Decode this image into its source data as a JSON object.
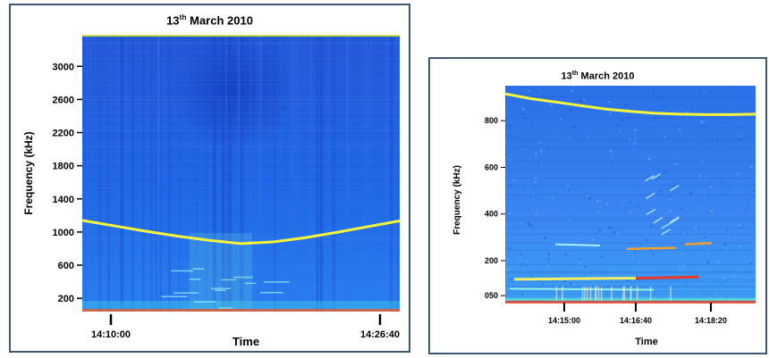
{
  "chart_data": [
    {
      "type": "heatmap",
      "title_main": "13",
      "title_sup": "th",
      "title_rest": " March 2010",
      "xlabel": "Time",
      "ylabel": "Frequency (kHz)",
      "ylim": [
        40,
        3380
      ],
      "yticks": [
        200,
        600,
        1000,
        1400,
        1800,
        2200,
        2600,
        3000
      ],
      "ytick_labels": [
        "200",
        "600",
        "1000",
        "1400",
        "1800",
        "2200",
        "2600",
        "3000"
      ],
      "xticks": [
        "14:10:00",
        "14:26:40"
      ],
      "background_color": "#1f5fe0",
      "series": [
        {
          "color": "#f5f53a",
          "x": [
            0,
            0.1,
            0.2,
            0.3,
            0.4,
            0.5,
            0.6,
            0.7,
            0.8,
            0.9,
            1.0
          ],
          "values": [
            1140,
            1075,
            1010,
            950,
            900,
            860,
            880,
            930,
            995,
            1065,
            1135
          ]
        }
      ]
    },
    {
      "type": "heatmap",
      "title_main": "13",
      "title_sup": "th",
      "title_rest": " March 2010",
      "xlabel": "Time",
      "ylabel": "Frequency (kHz)",
      "ylim": [
        20,
        950
      ],
      "yticks": [
        50,
        200,
        400,
        600,
        800
      ],
      "ytick_labels": [
        "050",
        "200",
        "400",
        "600",
        "800"
      ],
      "xticks": [
        "14:15:00",
        "14:16:40",
        "14:18:20"
      ],
      "background_color": "#3a7ff0",
      "series": [
        {
          "color": "#f5f53a",
          "x": [
            0,
            0.1,
            0.2,
            0.3,
            0.4,
            0.5,
            0.6,
            0.7,
            0.8,
            0.9,
            1.0
          ],
          "values": [
            915,
            895,
            880,
            865,
            850,
            840,
            832,
            828,
            826,
            826,
            828
          ]
        }
      ]
    }
  ]
}
